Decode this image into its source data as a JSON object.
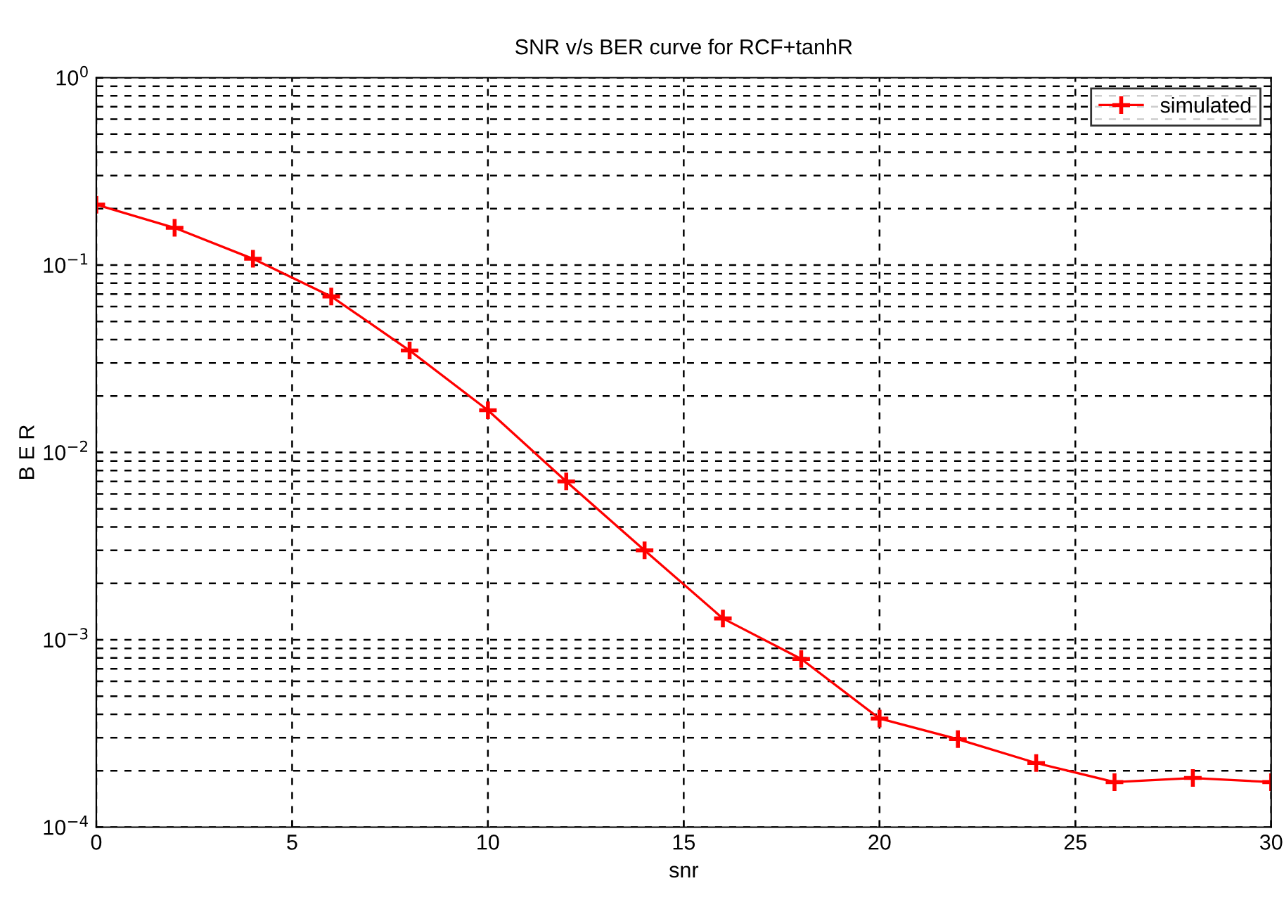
{
  "chart_data": {
    "type": "line",
    "title": "SNR v/s BER curve for RCF+tanhR",
    "xlabel": "snr",
    "ylabel": "B E R",
    "x": [
      0,
      2,
      4,
      6,
      8,
      10,
      12,
      14,
      16,
      18,
      20,
      22,
      24,
      26,
      28,
      30
    ],
    "series": [
      {
        "name": "simulated",
        "color": "#ff0000",
        "values": [
          0.21,
          0.158,
          0.108,
          0.068,
          0.035,
          0.0168,
          0.007,
          0.003,
          0.0013,
          0.00079,
          0.00038,
          0.000295,
          0.00022,
          0.000174,
          0.000183,
          0.000174
        ]
      }
    ],
    "log": "y",
    "xlim": [
      0,
      30
    ],
    "xticks": [
      0,
      5,
      10,
      15,
      20,
      25,
      30
    ],
    "ylim": [
      0.0001,
      1
    ],
    "yticks": [
      {
        "value": 0.0001,
        "label": "10$^{−4}$"
      },
      {
        "value": 0.001,
        "label": "10$^{−3}$"
      },
      {
        "value": 0.01,
        "label": "10$^{−2}$"
      },
      {
        "value": 0.1,
        "label": "10$^{−1}$"
      },
      {
        "value": 1,
        "label": "10$^{0}$"
      }
    ],
    "grid": true,
    "legend": "top right",
    "marker": "cross",
    "line_style": "solid"
  }
}
